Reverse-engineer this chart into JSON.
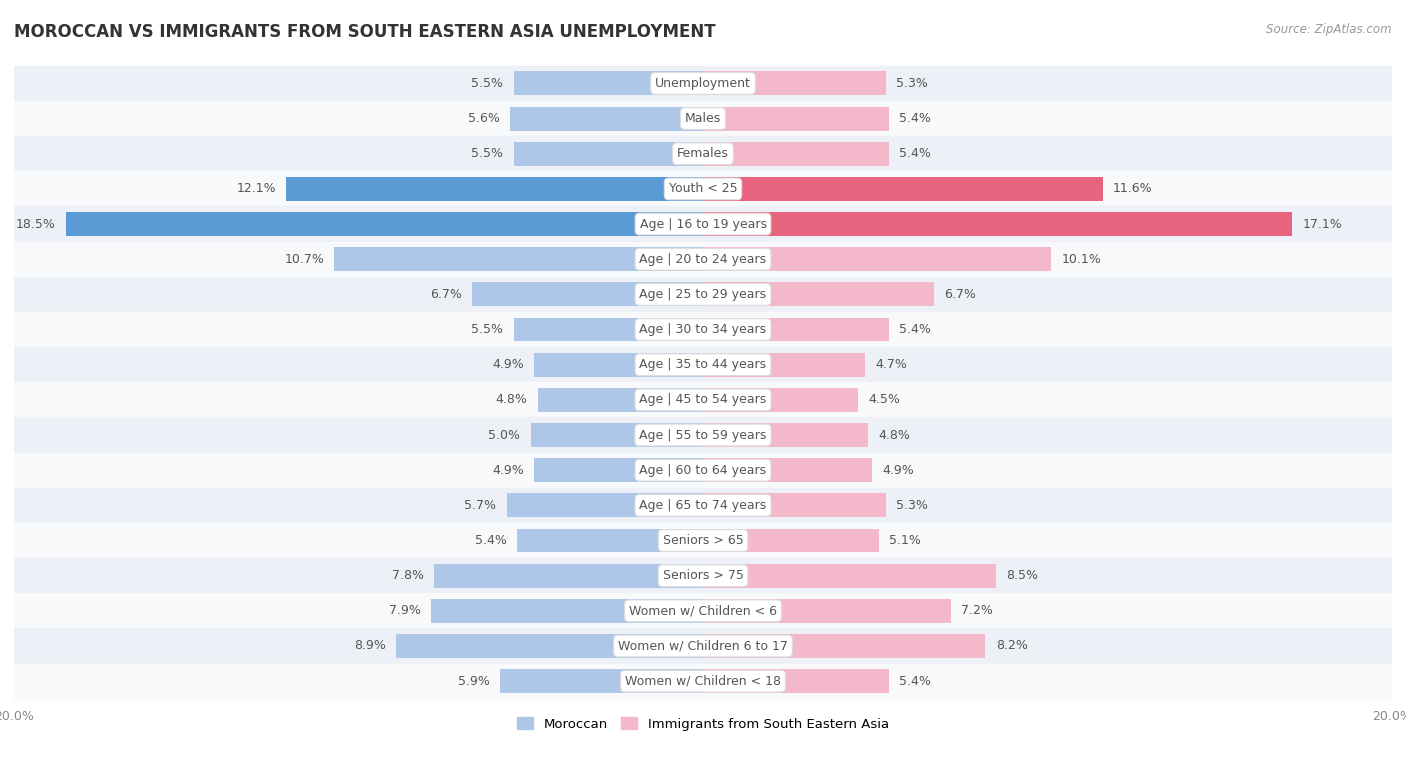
{
  "title": "MOROCCAN VS IMMIGRANTS FROM SOUTH EASTERN ASIA UNEMPLOYMENT",
  "source": "Source: ZipAtlas.com",
  "categories": [
    "Unemployment",
    "Males",
    "Females",
    "Youth < 25",
    "Age | 16 to 19 years",
    "Age | 20 to 24 years",
    "Age | 25 to 29 years",
    "Age | 30 to 34 years",
    "Age | 35 to 44 years",
    "Age | 45 to 54 years",
    "Age | 55 to 59 years",
    "Age | 60 to 64 years",
    "Age | 65 to 74 years",
    "Seniors > 65",
    "Seniors > 75",
    "Women w/ Children < 6",
    "Women w/ Children 6 to 17",
    "Women w/ Children < 18"
  ],
  "moroccan": [
    5.5,
    5.6,
    5.5,
    12.1,
    18.5,
    10.7,
    6.7,
    5.5,
    4.9,
    4.8,
    5.0,
    4.9,
    5.7,
    5.4,
    7.8,
    7.9,
    8.9,
    5.9
  ],
  "sea": [
    5.3,
    5.4,
    5.4,
    11.6,
    17.1,
    10.1,
    6.7,
    5.4,
    4.7,
    4.5,
    4.8,
    4.9,
    5.3,
    5.1,
    8.5,
    7.2,
    8.2,
    5.4
  ],
  "moroccan_color_normal": "#aec6e8",
  "moroccan_color_bold": "#5b9bd5",
  "sea_color_normal": "#f4b8cb",
  "sea_color_bold": "#e8637d",
  "background_row_even": "#edf1f7",
  "background_row_odd": "#f7f9fb",
  "xlim": 20.0,
  "bar_height": 0.68,
  "legend_moroccan": "Moroccan",
  "legend_sea": "Immigrants from South Eastern Asia",
  "bold_rows": [
    3,
    4
  ]
}
